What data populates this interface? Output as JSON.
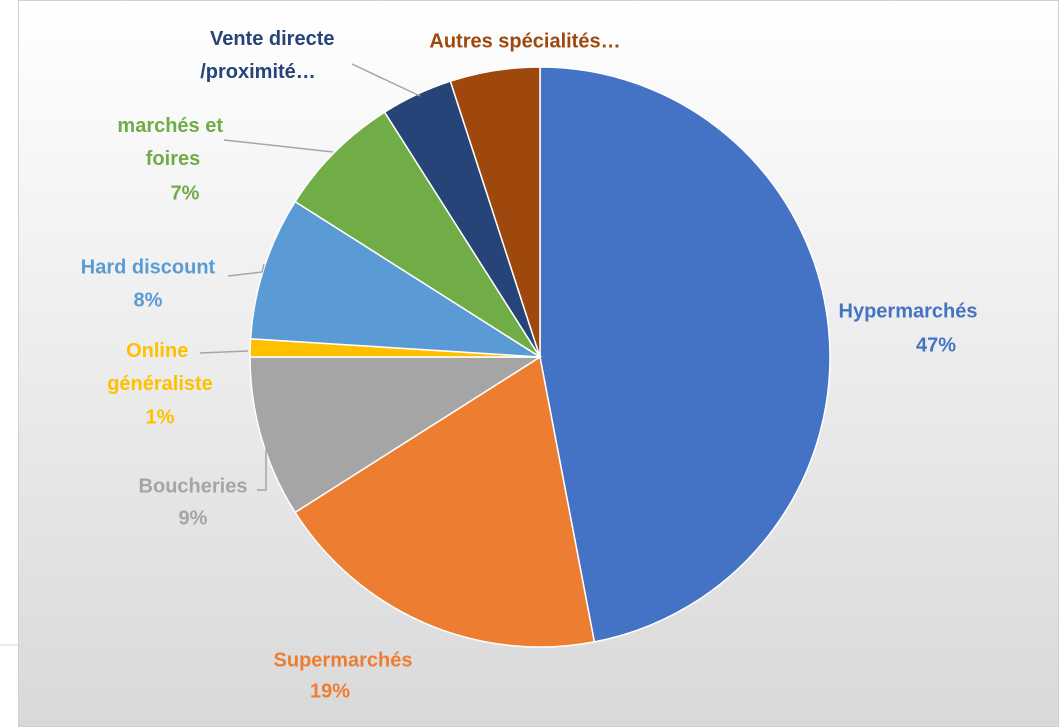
{
  "chart_data": {
    "type": "pie",
    "categories": [
      "Hypermarchés",
      "Supermarchés",
      "Boucheries",
      "Online généraliste",
      "Hard discount",
      "marchés et foires",
      "Vente directe /proximité…",
      "Autres spécialités…"
    ],
    "values": [
      47,
      19,
      9,
      1,
      8,
      7,
      4,
      5
    ],
    "value_labels": [
      "47%",
      "19%",
      "9%",
      "1%",
      "8%",
      "7%",
      null,
      null
    ],
    "colors": [
      "#4472c4",
      "#ed7d31",
      "#a5a5a5",
      "#ffc000",
      "#5b9bd5",
      "#70ad47",
      "#264478",
      "#9e480e"
    ]
  }
}
